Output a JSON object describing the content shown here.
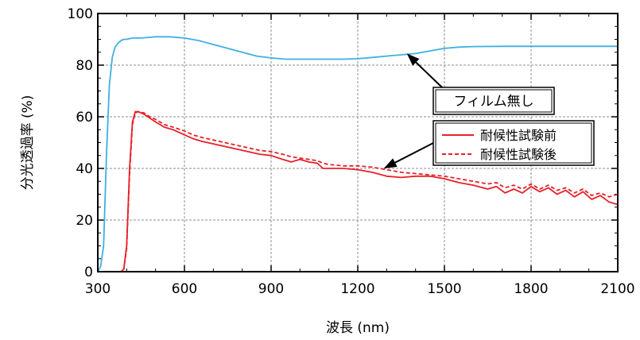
{
  "chart_data": {
    "type": "line",
    "title": "",
    "xlabel": "波長 (nm)",
    "ylabel": "分光透過率 (%)",
    "xlim": [
      300,
      2100
    ],
    "ylim": [
      0,
      100
    ],
    "xticks": [
      300,
      600,
      900,
      1200,
      1500,
      1800,
      2100
    ],
    "yticks": [
      0,
      20,
      40,
      60,
      80,
      100
    ],
    "grid": true,
    "legend": {
      "position": "right-middle",
      "entries": [
        "耐候性試験前",
        "耐候性試験後"
      ]
    },
    "annotations": [
      {
        "text": "フィルム無し",
        "target": {
          "x": 1370,
          "y": 84.5
        }
      },
      {
        "text": "",
        "target": {
          "x": 1290,
          "y": 40
        }
      }
    ],
    "series": [
      {
        "name": "フィルム無し",
        "color": "#3fb0e0",
        "style": "solid",
        "x": [
          300,
          310,
          320,
          330,
          340,
          350,
          360,
          370,
          380,
          390,
          400,
          420,
          450,
          500,
          550,
          600,
          650,
          700,
          750,
          800,
          850,
          900,
          950,
          1000,
          1050,
          1100,
          1150,
          1200,
          1250,
          1300,
          1350,
          1400,
          1450,
          1500,
          1550,
          1600,
          1700,
          1800,
          1900,
          2000,
          2100
        ],
        "y": [
          0,
          2,
          10,
          45,
          72,
          83,
          87,
          88.5,
          89.5,
          90,
          90,
          90.5,
          90.5,
          91,
          91,
          90.5,
          89.5,
          88,
          86.5,
          85,
          83.5,
          82.8,
          82.3,
          82.3,
          82.3,
          82.3,
          82.3,
          82.5,
          83,
          83.5,
          84,
          84.5,
          85.5,
          86.5,
          87,
          87.2,
          87.3,
          87.3,
          87.3,
          87.3,
          87.3
        ]
      },
      {
        "name": "耐候性試験前",
        "color": "#e8202a",
        "style": "solid",
        "x": [
          300,
          380,
          390,
          400,
          410,
          420,
          430,
          440,
          460,
          480,
          500,
          530,
          560,
          600,
          630,
          660,
          700,
          740,
          780,
          820,
          860,
          900,
          940,
          970,
          1000,
          1030,
          1060,
          1080,
          1100,
          1150,
          1200,
          1250,
          1300,
          1350,
          1400,
          1450,
          1500,
          1550,
          1600,
          1650,
          1680,
          1710,
          1740,
          1770,
          1800,
          1830,
          1860,
          1890,
          1920,
          1950,
          1980,
          2010,
          2040,
          2070,
          2100
        ],
        "y": [
          0,
          0,
          1,
          10,
          40,
          58,
          62,
          62,
          61,
          59.5,
          58,
          56,
          55,
          53,
          51.5,
          50.5,
          49.5,
          48.5,
          47.5,
          46.5,
          45.5,
          45,
          43.5,
          42.5,
          43.5,
          42.5,
          42,
          40,
          40,
          40,
          39.5,
          38.5,
          37,
          36.5,
          37,
          37,
          36,
          34.5,
          33.5,
          32,
          33,
          30.5,
          32,
          30.5,
          33,
          31,
          32.5,
          30,
          31.5,
          29,
          31,
          28,
          29.5,
          27,
          26
        ]
      },
      {
        "name": "耐候性試験後",
        "color": "#e8202a",
        "style": "dashed",
        "x": [
          300,
          380,
          390,
          400,
          410,
          420,
          430,
          440,
          460,
          480,
          500,
          530,
          560,
          600,
          630,
          660,
          700,
          740,
          780,
          820,
          860,
          900,
          940,
          970,
          1000,
          1030,
          1060,
          1080,
          1100,
          1150,
          1200,
          1250,
          1300,
          1350,
          1400,
          1450,
          1500,
          1550,
          1600,
          1650,
          1680,
          1710,
          1740,
          1770,
          1800,
          1830,
          1860,
          1890,
          1920,
          1950,
          1980,
          2010,
          2040,
          2070,
          2100
        ],
        "y": [
          0,
          0,
          1,
          9,
          38,
          57,
          61.5,
          62,
          61.5,
          60,
          59,
          57,
          56,
          54.5,
          53,
          52,
          51,
          50,
          49,
          48,
          47,
          46.5,
          45.5,
          44.5,
          44,
          43.5,
          43,
          42,
          41.5,
          41,
          41,
          40.5,
          39.5,
          38.5,
          38,
          37.5,
          37,
          36,
          35,
          34,
          34.5,
          32.5,
          33.5,
          32,
          34,
          32,
          33.5,
          31.5,
          32.5,
          30.5,
          32,
          29.5,
          30.5,
          29,
          30
        ]
      }
    ]
  }
}
